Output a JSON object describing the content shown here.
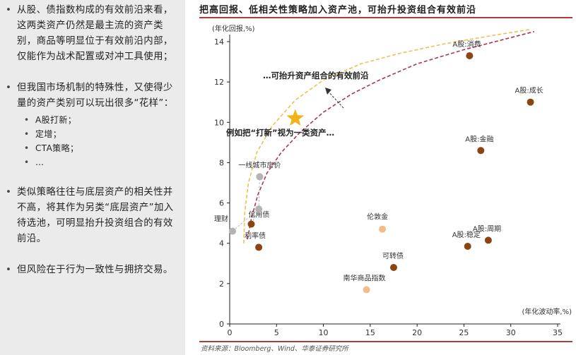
{
  "bullets": [
    {
      "text": "从股、债指数构成的有效前沿来看，这两类资产仍然是最主流的资产类别，商品等明显位于有效前沿内部，仅能作为战术配置或对冲工具使用；"
    },
    {
      "text": "但我国市场机制的特殊性，又使得少量的资产类别可以玩出很多“花样”：",
      "sub": [
        "A股打新；",
        "定增；",
        "CTA策略；",
        "…"
      ]
    },
    {
      "text": "类似策略往往与底层资产的相关性并不高，将其作为另类“底层资产”加入待选池，可明显抬升投资组合的有效前沿。"
    },
    {
      "text": "但风险在于行为一致性与拥挤交易。"
    }
  ],
  "chart_data": {
    "type": "scatter",
    "title": "把高回报、低相关性策略加入资产池，可抬升投资组合有效前沿",
    "xlabel": "(年化波动率,%)",
    "ylabel": "(年化回报,%)",
    "xlim": [
      0,
      35
    ],
    "ylim": [
      0,
      14
    ],
    "xticks": [
      0,
      5,
      10,
      15,
      20,
      25,
      30,
      35
    ],
    "yticks": [
      0,
      2,
      4,
      6,
      8,
      10,
      12,
      14
    ],
    "grid": false,
    "points": [
      {
        "label": "理财",
        "x": 0.3,
        "y": 4.6,
        "color": "#b3b3b3"
      },
      {
        "label": "信用债",
        "x": 2.3,
        "y": 4.95,
        "color": "#8b4513"
      },
      {
        "label": "利率债",
        "x": 3.1,
        "y": 3.8,
        "color": "#8b4513"
      },
      {
        "label": "一线城市房价",
        "x": 3.2,
        "y": 7.3,
        "color": "#b3b3b3"
      },
      {
        "label": "",
        "x": 3.1,
        "y": 5.7,
        "color": "#b3b3b3"
      },
      {
        "label": "伦敦金",
        "x": 16.3,
        "y": 4.7,
        "color": "#f3bd8a"
      },
      {
        "label": "可转债",
        "x": 17.5,
        "y": 2.8,
        "color": "#8b4513"
      },
      {
        "label": "南华商品指数",
        "x": 14.6,
        "y": 1.7,
        "color": "#f3bd8a"
      },
      {
        "label": "A股:消费",
        "x": 25.6,
        "y": 13.3,
        "color": "#8b4513"
      },
      {
        "label": "A股:成长",
        "x": 32.1,
        "y": 11.0,
        "color": "#8b4513"
      },
      {
        "label": "A股:金融",
        "x": 26.8,
        "y": 8.6,
        "color": "#8b4513"
      },
      {
        "label": "A股:稳定",
        "x": 25.4,
        "y": 3.85,
        "color": "#8b4513"
      },
      {
        "label": "A股:周期",
        "x": 27.6,
        "y": 4.15,
        "color": "#8b4513"
      }
    ],
    "star": {
      "x": 7.0,
      "y": 10.2,
      "color": "#f2b21a"
    },
    "frontiers": [
      {
        "name": "original",
        "color": "#a5394f",
        "points": [
          [
            1.9,
            4.2
          ],
          [
            2.3,
            5.2
          ],
          [
            3.0,
            6.4
          ],
          [
            4.0,
            7.5
          ],
          [
            5.5,
            8.5
          ],
          [
            7.5,
            9.5
          ],
          [
            10,
            10.5
          ],
          [
            13,
            11.4
          ],
          [
            16,
            12.1
          ],
          [
            20,
            12.9
          ],
          [
            25,
            13.6
          ],
          [
            30,
            14.2
          ],
          [
            32.5,
            14.5
          ]
        ]
      },
      {
        "name": "raised",
        "color": "#f0c050",
        "points": [
          [
            1.5,
            4.0
          ],
          [
            1.6,
            5.5
          ],
          [
            2.0,
            7.0
          ],
          [
            2.9,
            8.5
          ],
          [
            4.5,
            9.8
          ],
          [
            7.0,
            11.1
          ],
          [
            10,
            12.1
          ],
          [
            14,
            12.9
          ],
          [
            18,
            13.4
          ],
          [
            23,
            13.9
          ],
          [
            28,
            14.3
          ],
          [
            32,
            14.6
          ]
        ]
      }
    ],
    "annotations": [
      "…可抬升资产组合的有效前沿",
      "例如把“打新”视为一类资产…"
    ]
  },
  "source": "资料来源：Bloomberg、Wind、华泰证券研究所",
  "colors": {
    "left_bg": "#ebebeb",
    "title_rule": "#b03a3a"
  }
}
